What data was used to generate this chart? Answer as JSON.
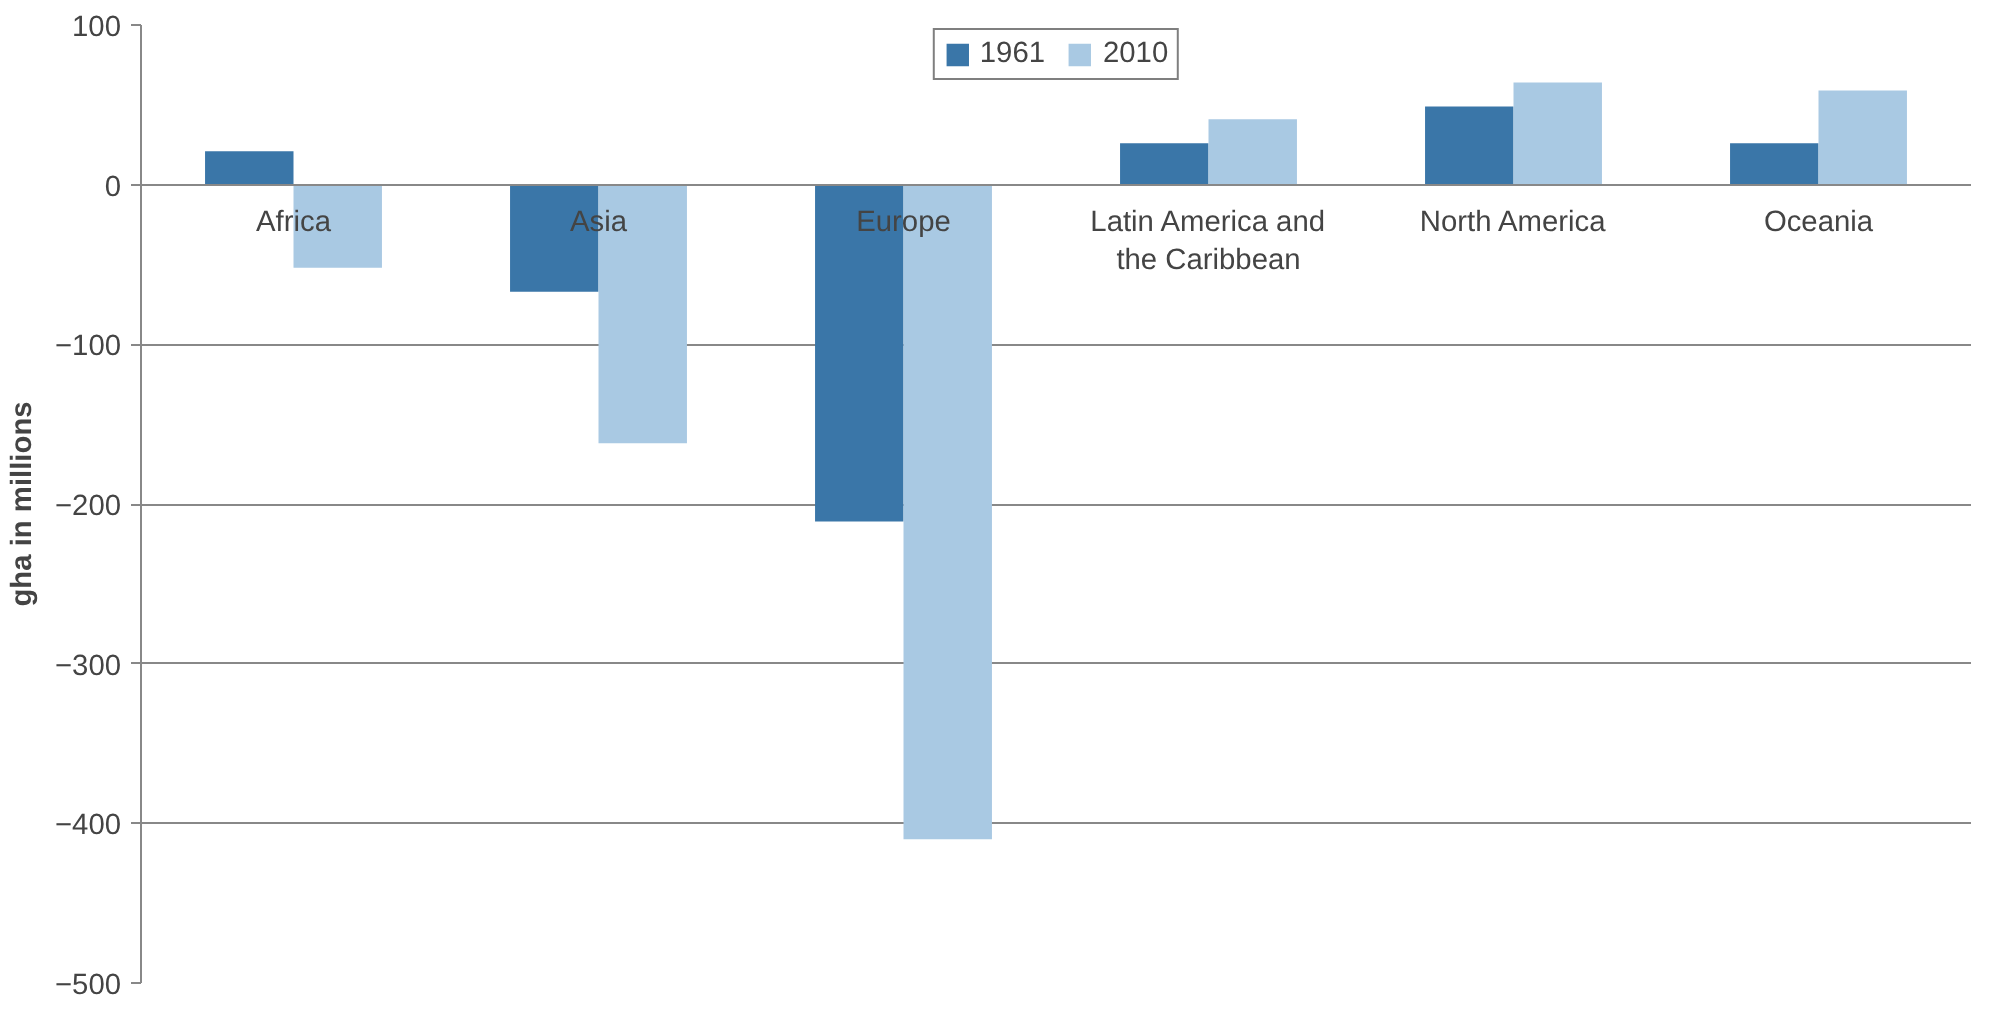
{
  "chart_data": {
    "type": "bar",
    "ylabel": "gha in millions",
    "categories": [
      "Africa",
      "Asia",
      "Europe",
      "Latin America and the Caribbean",
      "North America",
      "Oceania"
    ],
    "series": [
      {
        "name": "1961",
        "color": "#3a76a8",
        "values": [
          21,
          -67,
          -211,
          26,
          49,
          26
        ]
      },
      {
        "name": "2010",
        "color": "#a9c9e3",
        "values": [
          -52,
          -162,
          -410,
          41,
          64,
          59
        ]
      }
    ],
    "ylim": [
      -500,
      100
    ],
    "yticks": [
      -500,
      -400,
      -300,
      -200,
      -100,
      0,
      100
    ],
    "grid": "y",
    "legend": "top"
  }
}
